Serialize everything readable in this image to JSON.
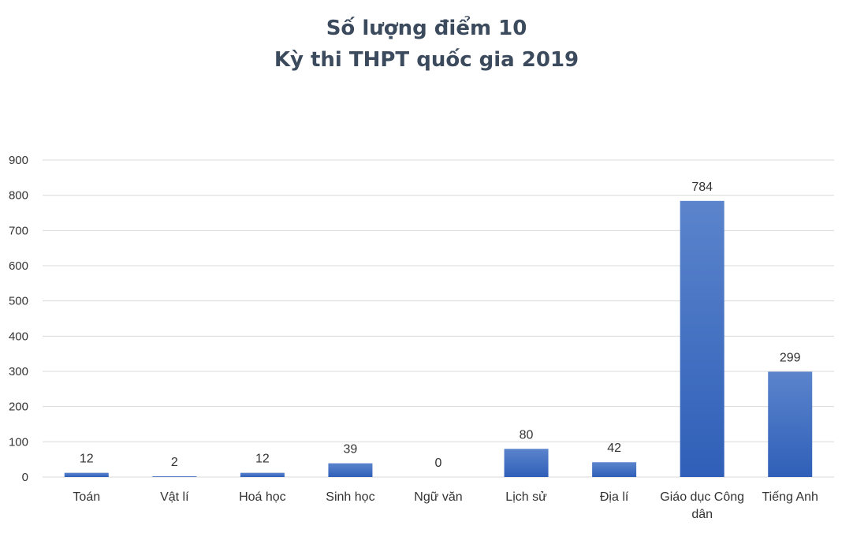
{
  "chart_data": {
    "type": "bar",
    "title": [
      "Số lượng điểm 10",
      "Kỳ thi THPT quốc gia 2019"
    ],
    "categories": [
      "Toán",
      "Vật lí",
      "Hoá học",
      "Sinh học",
      "Ngữ văn",
      "Lịch sử",
      "Địa lí",
      "Giáo dục Công dân",
      "Tiếng Anh"
    ],
    "category_lines": [
      [
        "Toán"
      ],
      [
        "Vật lí"
      ],
      [
        "Hoá học"
      ],
      [
        "Sinh học"
      ],
      [
        "Ngữ văn"
      ],
      [
        "Lịch sử"
      ],
      [
        "Địa lí"
      ],
      [
        "Giáo dục Công",
        "dân"
      ],
      [
        "Tiếng Anh"
      ]
    ],
    "values": [
      12,
      2,
      12,
      39,
      0,
      80,
      42,
      784,
      299
    ],
    "value_labels": [
      "12",
      "2",
      "12",
      "39",
      "0",
      "80",
      "42",
      "784",
      "299"
    ],
    "yticks": [
      0,
      100,
      200,
      300,
      400,
      500,
      600,
      700,
      800,
      900
    ],
    "ytick_labels": [
      "0",
      "100",
      "200",
      "300",
      "400",
      "500",
      "600",
      "700",
      "800",
      "900"
    ],
    "ylim": [
      0,
      900
    ],
    "xlabel": "",
    "ylabel": "",
    "grid": true,
    "legend": "none",
    "bar_color_top": "#5b84cc",
    "bar_color_bottom": "#2f5fb8",
    "grid_color": "#d9d9d9",
    "text_color": "#333333",
    "title_color": "#3b4a5c"
  }
}
